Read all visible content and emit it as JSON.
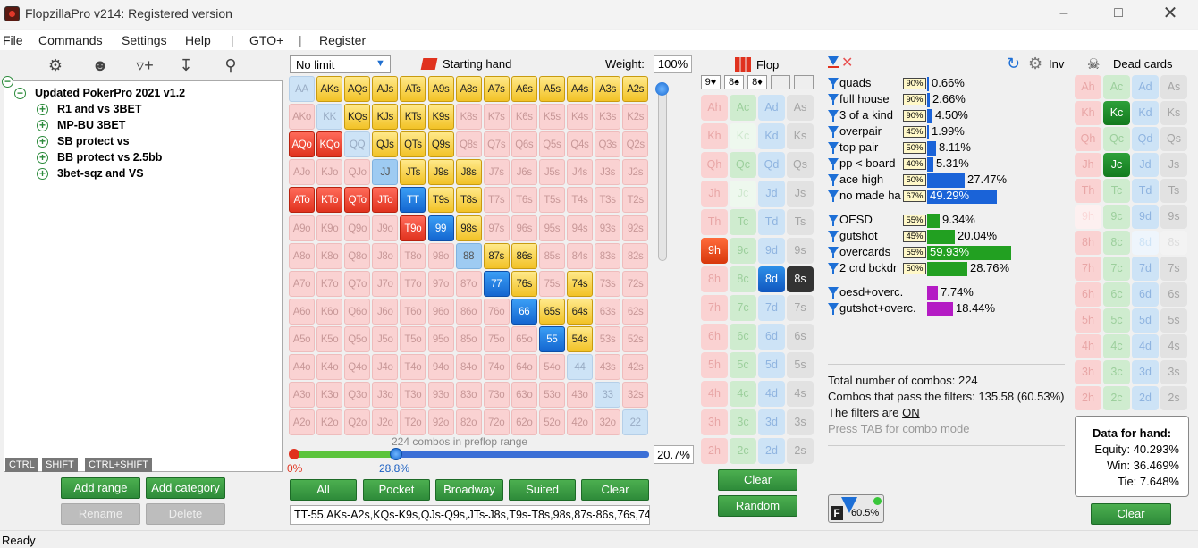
{
  "window": {
    "title": "FlopzillaPro v214: Registered version"
  },
  "menu": [
    "File",
    "Commands",
    "Settings",
    "Help",
    "|",
    "GTO+",
    "|",
    "Register"
  ],
  "toolbar_icons": [
    "gear-icon",
    "users-icon",
    "filter-add-icon",
    "import-icon",
    "search-icon"
  ],
  "tree": {
    "root": "Updated PokerPro 2021 v1.2",
    "children": [
      "R1 and vs 3BET",
      "MP-BU 3BET",
      "SB protect vs",
      "BB protect vs 2.5bb",
      "3bet-sqz and VS"
    ]
  },
  "key_tabs": [
    "CTRL",
    "SHIFT",
    "CTRL+SHIFT"
  ],
  "left_buttons": {
    "add_range": "Add range",
    "add_category": "Add category",
    "rename": "Rename",
    "delete": "Delete"
  },
  "range": {
    "limit_select": "No limit",
    "starting_hand_label": "Starting hand",
    "weight_label": "Weight:",
    "weight_value": "100%",
    "slider_combos_text": "224 combos in preflop range",
    "slider_min": "0%",
    "slider_pos": "28.8%",
    "slider_fill": 0.288,
    "pct_box": "20.7%",
    "buttons": [
      "All",
      "Pocket",
      "Broadway",
      "Suited",
      "Clear"
    ],
    "range_text": "TT-55,AKs-A2s,KQs-K9s,QJs-Q9s,JTs-J8s,T9s-T8s,98s,87s-86s,76s,74",
    "grid": [
      [
        "AA",
        "AKs",
        "AQs",
        "AJs",
        "ATs",
        "A9s",
        "A8s",
        "A7s",
        "A6s",
        "A5s",
        "A4s",
        "A3s",
        "A2s"
      ],
      [
        "AKo",
        "KK",
        "KQs",
        "KJs",
        "KTs",
        "K9s",
        "K8s",
        "K7s",
        "K6s",
        "K5s",
        "K4s",
        "K3s",
        "K2s"
      ],
      [
        "AQo",
        "KQo",
        "QQ",
        "QJs",
        "QTs",
        "Q9s",
        "Q8s",
        "Q7s",
        "Q6s",
        "Q5s",
        "Q4s",
        "Q3s",
        "Q2s"
      ],
      [
        "AJo",
        "KJo",
        "QJo",
        "JJ",
        "JTs",
        "J9s",
        "J8s",
        "J7s",
        "J6s",
        "J5s",
        "J4s",
        "J3s",
        "J2s"
      ],
      [
        "ATo",
        "KTo",
        "QTo",
        "JTo",
        "TT",
        "T9s",
        "T8s",
        "T7s",
        "T6s",
        "T5s",
        "T4s",
        "T3s",
        "T2s"
      ],
      [
        "A9o",
        "K9o",
        "Q9o",
        "J9o",
        "T9o",
        "99",
        "98s",
        "97s",
        "96s",
        "95s",
        "94s",
        "93s",
        "92s"
      ],
      [
        "A8o",
        "K8o",
        "Q8o",
        "J8o",
        "T8o",
        "98o",
        "88",
        "87s",
        "86s",
        "85s",
        "84s",
        "83s",
        "82s"
      ],
      [
        "A7o",
        "K7o",
        "Q7o",
        "J7o",
        "T7o",
        "97o",
        "87o",
        "77",
        "76s",
        "75s",
        "74s",
        "73s",
        "72s"
      ],
      [
        "A6o",
        "K6o",
        "Q6o",
        "J6o",
        "T6o",
        "96o",
        "86o",
        "76o",
        "66",
        "65s",
        "64s",
        "63s",
        "62s"
      ],
      [
        "A5o",
        "K5o",
        "Q5o",
        "J5o",
        "T5o",
        "95o",
        "85o",
        "75o",
        "65o",
        "55",
        "54s",
        "53s",
        "52s"
      ],
      [
        "A4o",
        "K4o",
        "Q4o",
        "J4o",
        "T4o",
        "94o",
        "84o",
        "74o",
        "64o",
        "54o",
        "44",
        "43s",
        "42s"
      ],
      [
        "A3o",
        "K3o",
        "Q3o",
        "J3o",
        "T3o",
        "93o",
        "83o",
        "73o",
        "63o",
        "53o",
        "43o",
        "33",
        "32s"
      ],
      [
        "A2o",
        "K2o",
        "Q2o",
        "J2o",
        "T2o",
        "92o",
        "82o",
        "72o",
        "62o",
        "52o",
        "42o",
        "32o",
        "22"
      ]
    ],
    "styles": [
      "LGGGGGGGGGGGG",
      "PLGGGGPPPPPPP",
      "RRLGGGPPPPPPP",
      "PPPLGGGPPPPPP",
      "RRRRBGGPPPPPP",
      "PPPPRBGPPPPPP",
      "PPPPPPLGGPPPP",
      "PPPPPPPBGPGPP",
      "PPPPPPPPBGGPP",
      "PPPPPPPPPBGPP",
      "PPPPPPPPPPLPP",
      "PPPPPPPPPPPLP",
      "PPPPPPPPPPPPL"
    ]
  },
  "flop": {
    "label": "Flop",
    "suit_boxes": [
      "9♥",
      "8♠",
      "8♦",
      "",
      ""
    ],
    "ranks": [
      "A",
      "K",
      "Q",
      "J",
      "T",
      "9",
      "8",
      "7",
      "6",
      "5",
      "4",
      "3",
      "2"
    ],
    "suits": [
      "h",
      "c",
      "d",
      "s"
    ],
    "selected": [
      "9h",
      "8d",
      "8s"
    ],
    "disabled": [
      "Kc",
      "Jc"
    ],
    "buttons": {
      "clear": "Clear",
      "random": "Random"
    }
  },
  "filters": {
    "inv_label": "Inv",
    "groups": [
      [
        {
          "name": "quads",
          "pct": "90%",
          "value": "0.66%",
          "bar": 0.0,
          "color": "#1a63d8"
        },
        {
          "name": "full house",
          "pct": "90%",
          "value": "2.66%",
          "bar": 0.03,
          "color": "#1a63d8"
        },
        {
          "name": "3 of a kind",
          "pct": "90%",
          "value": "4.50%",
          "bar": 0.06,
          "color": "#1a63d8"
        },
        {
          "name": "overpair",
          "pct": "45%",
          "value": "1.99%",
          "bar": 0.0,
          "color": "#1a63d8"
        },
        {
          "name": "top pair",
          "pct": "50%",
          "value": "8.11%",
          "bar": 0.1,
          "color": "#1a63d8"
        },
        {
          "name": "pp < board",
          "pct": "40%",
          "value": "5.31%",
          "bar": 0.07,
          "color": "#1a63d8"
        },
        {
          "name": "ace high",
          "pct": "50%",
          "value": "27.47%",
          "bar": 0.42,
          "color": "#1a63d8"
        },
        {
          "name": "no made ha",
          "pct": "67%",
          "value": "49.29%",
          "bar": 0.78,
          "color": "#1a63d8"
        }
      ],
      [
        {
          "name": "OESD",
          "pct": "55%",
          "value": "9.34%",
          "bar": 0.14,
          "color": "#22a021"
        },
        {
          "name": "gutshot",
          "pct": "45%",
          "value": "20.04%",
          "bar": 0.31,
          "color": "#22a021"
        },
        {
          "name": "overcards",
          "pct": "55%",
          "value": "59.93%",
          "bar": 0.94,
          "color": "#22a021"
        },
        {
          "name": "2 crd bckdr",
          "pct": "50%",
          "value": "28.76%",
          "bar": 0.45,
          "color": "#22a021"
        }
      ],
      [
        {
          "name": "oesd+overc.",
          "pct": "",
          "value": "7.74%",
          "bar": 0.12,
          "color": "#b41bc4"
        },
        {
          "name": "gutshot+overc.",
          "pct": "",
          "value": "18.44%",
          "bar": 0.29,
          "color": "#b41bc4"
        }
      ]
    ],
    "summary": {
      "total": "Total number of combos: 224",
      "pass": "Combos that pass the filters: 135.58 (60.53%)",
      "filters_are": "The filters are",
      "filters_state": "ON",
      "hint": "Press TAB for combo mode"
    },
    "badge": {
      "letter": "F",
      "value": "60.5%"
    }
  },
  "dead": {
    "label": "Dead cards",
    "selected": [
      "Kc",
      "Jc"
    ],
    "disabled": [
      "9h",
      "8d",
      "8s"
    ],
    "clear": "Clear"
  },
  "hand_data": {
    "title": "Data for hand:",
    "equity": "Equity: 40.293%",
    "win": "Win: 36.469%",
    "tie": "Tie: 7.648%"
  },
  "status": "Ready"
}
